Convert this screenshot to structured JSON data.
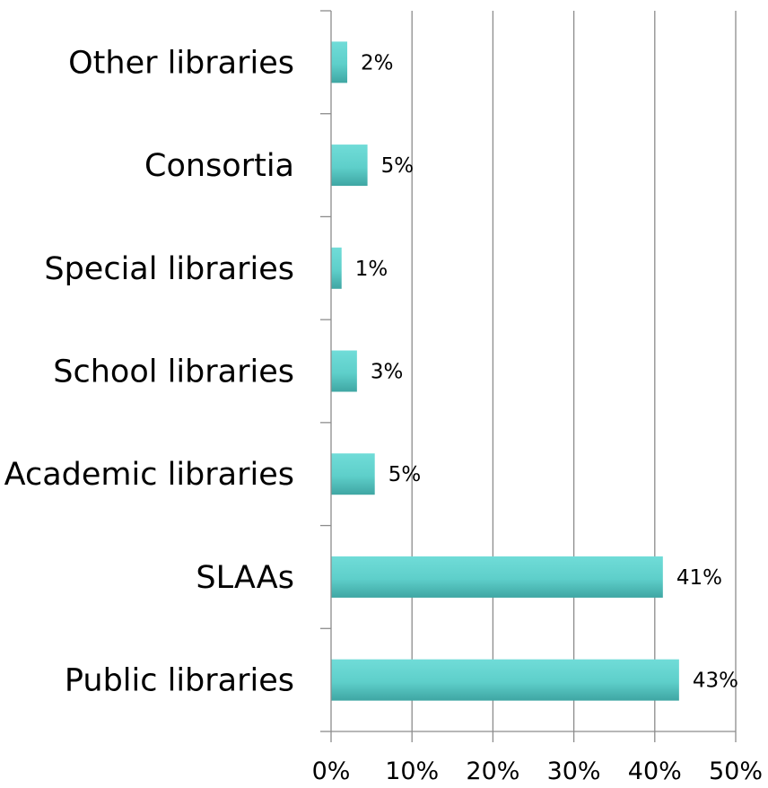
{
  "chart_data": {
    "type": "bar",
    "orientation": "horizontal",
    "categories": [
      "Public libraries",
      "SLAAs",
      "Academic libraries",
      "School   libraries",
      "Special libraries",
      "Consortia",
      "Other libraries"
    ],
    "values": [
      43,
      41,
      5.4,
      3.2,
      1.3,
      4.5,
      2
    ],
    "data_labels": [
      "43%",
      "41%",
      "5%",
      "3%",
      "1%",
      "5%",
      "2%"
    ],
    "xlim": [
      0,
      50
    ],
    "x_ticks": [
      0,
      10,
      20,
      30,
      40,
      50
    ],
    "x_tick_labels": [
      "0%",
      "10%",
      "20%",
      "30%",
      "40%",
      "50%"
    ],
    "title": "",
    "xlabel": "",
    "ylabel": "",
    "grid": "vertical",
    "legend": "none",
    "bar_color": "#5ecfca",
    "bar_color_light": "#70dcd8",
    "bar_color_dark": "#3fa6a3"
  }
}
